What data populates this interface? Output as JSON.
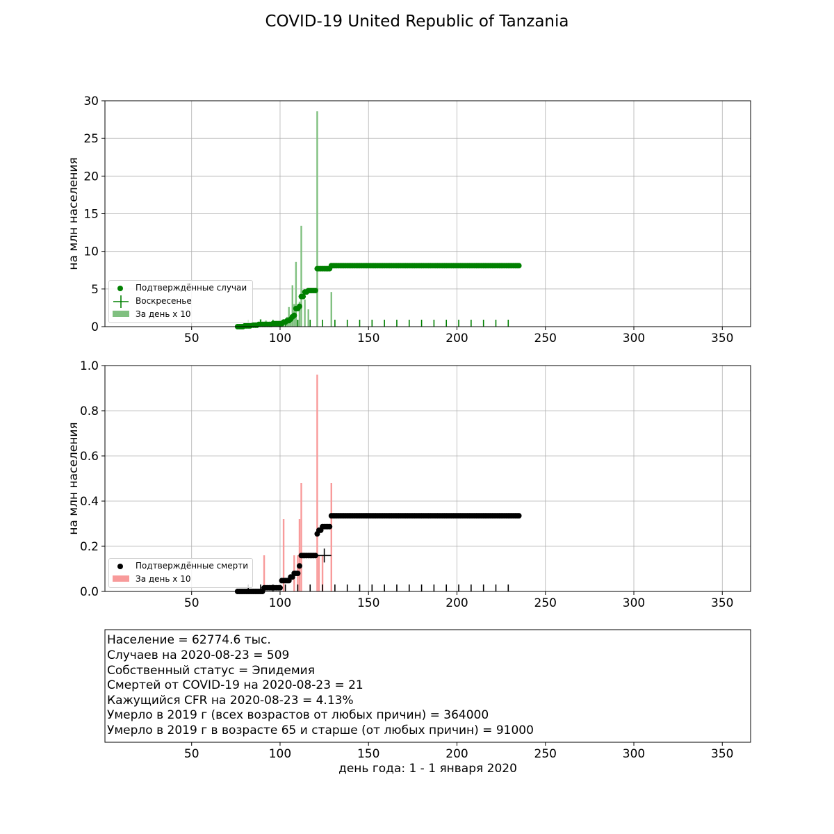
{
  "figure": {
    "title": "COVID-19 United Republic of Tanzania",
    "xlabel": "день года: 1 - 1 января 2020"
  },
  "chart_data": [
    {
      "type": "scatter",
      "ylabel": "на млн населения",
      "xlim": [
        1,
        366
      ],
      "ylim": [
        0,
        30
      ],
      "xticks": [
        50,
        100,
        150,
        200,
        250,
        300,
        350
      ],
      "yticks": [
        0,
        5,
        10,
        15,
        20,
        25,
        30
      ],
      "yticklabels": [
        "0",
        "5",
        "10",
        "15",
        "20",
        "25",
        "30"
      ],
      "grid": true,
      "legend_position": "lower-left",
      "legend": [
        "Подтверждённые случаи",
        "Воскресенье",
        "За день x 10"
      ],
      "colors": {
        "points": "#008000",
        "bars": "#80c080",
        "sunday": "#008000"
      },
      "cumulative_steps": [
        [
          76,
          0.0
        ],
        [
          80,
          0.1
        ],
        [
          84,
          0.2
        ],
        [
          88,
          0.3
        ],
        [
          92,
          0.3
        ],
        [
          96,
          0.4
        ],
        [
          100,
          0.4
        ],
        [
          102,
          0.6
        ],
        [
          104,
          0.8
        ],
        [
          106,
          1.0
        ],
        [
          107,
          1.3
        ],
        [
          108,
          1.5
        ],
        [
          109,
          2.4
        ],
        [
          110,
          2.4
        ],
        [
          111,
          2.7
        ],
        [
          112,
          4.0
        ],
        [
          114,
          4.6
        ],
        [
          116,
          4.8
        ],
        [
          121,
          7.7
        ],
        [
          129,
          8.1
        ],
        [
          235,
          8.1
        ]
      ],
      "daily_bars": [
        [
          79,
          0.2
        ],
        [
          81,
          0.3
        ],
        [
          84,
          0.4
        ],
        [
          88,
          0.6
        ],
        [
          89,
          1.0
        ],
        [
          92,
          0.8
        ],
        [
          95,
          0.6
        ],
        [
          98,
          0.7
        ],
        [
          101,
          0.5
        ],
        [
          102,
          1.0
        ],
        [
          104,
          1.3
        ],
        [
          105,
          2.6
        ],
        [
          106,
          1.6
        ],
        [
          107,
          5.5
        ],
        [
          108,
          3.0
        ],
        [
          109,
          8.6
        ],
        [
          110,
          0.9
        ],
        [
          111,
          3.3
        ],
        [
          112,
          13.4
        ],
        [
          114,
          3.6
        ],
        [
          116,
          2.3
        ],
        [
          121,
          28.6
        ],
        [
          129,
          4.6
        ]
      ],
      "sundays": [
        82,
        89,
        96,
        103,
        110,
        117,
        124,
        131,
        138,
        145,
        152,
        159,
        166,
        173,
        180,
        187,
        194,
        201,
        208,
        215,
        222,
        229
      ],
      "sunday_cross": [],
      "series": [
        {
          "name": "Подтверждённые случаи",
          "x_range": [
            76,
            235
          ]
        },
        {
          "name": "За день x 10"
        }
      ]
    },
    {
      "type": "scatter",
      "ylabel": "на млн населения",
      "xlim": [
        1,
        366
      ],
      "ylim": [
        0,
        1.0
      ],
      "xticks": [
        50,
        100,
        150,
        200,
        250,
        300,
        350
      ],
      "yticks": [
        0,
        0.2,
        0.4,
        0.6,
        0.8,
        1.0
      ],
      "yticklabels": [
        "0.0",
        "0.2",
        "0.4",
        "0.6",
        "0.8",
        "1.0"
      ],
      "grid": true,
      "legend_position": "lower-left",
      "legend": [
        "Подтверждённые смерти",
        "За день x 10"
      ],
      "colors": {
        "points": "#000000",
        "bars": "#f89a9a",
        "sunday": "#000000"
      },
      "cumulative_steps": [
        [
          76,
          0.0
        ],
        [
          91,
          0.016
        ],
        [
          101,
          0.048
        ],
        [
          106,
          0.064
        ],
        [
          108,
          0.08
        ],
        [
          111,
          0.113
        ],
        [
          112,
          0.159
        ],
        [
          121,
          0.255
        ],
        [
          122,
          0.271
        ],
        [
          124,
          0.287
        ],
        [
          129,
          0.335
        ],
        [
          235,
          0.335
        ]
      ],
      "daily_bars": [
        [
          91,
          0.16
        ],
        [
          102,
          0.32
        ],
        [
          108,
          0.16
        ],
        [
          110,
          0.16
        ],
        [
          111,
          0.32
        ],
        [
          112,
          0.48
        ],
        [
          121,
          0.96
        ],
        [
          122,
          0.16
        ],
        [
          124,
          0.16
        ],
        [
          129,
          0.48
        ]
      ],
      "sundays": [
        82,
        89,
        96,
        103,
        110,
        117,
        124,
        131,
        138,
        145,
        152,
        159,
        166,
        173,
        180,
        187,
        194,
        201,
        208,
        215,
        222,
        229
      ],
      "sunday_cross": [
        125,
        0.159
      ],
      "series": [
        {
          "name": "Подтверждённые смерти",
          "x_range": [
            76,
            235
          ]
        },
        {
          "name": "За день x 10"
        }
      ]
    }
  ],
  "info": {
    "xticks": [
      50,
      100,
      150,
      200,
      250,
      300,
      350
    ],
    "lines": [
      "Население = 62774.6 тыс.",
      "Случаев на 2020-08-23 = 509",
      "Собственный статус = Эпидемия",
      "Смертей от COVID-19 на 2020-08-23 = 21",
      "Кажущийся CFR на 2020-08-23 = 4.13%",
      "Умерло в 2019 г (всех возрастов от любых причин) = 364000",
      "Умерло в 2019 г в возрасте 65 и старше (от любых причин) = 91000"
    ]
  }
}
